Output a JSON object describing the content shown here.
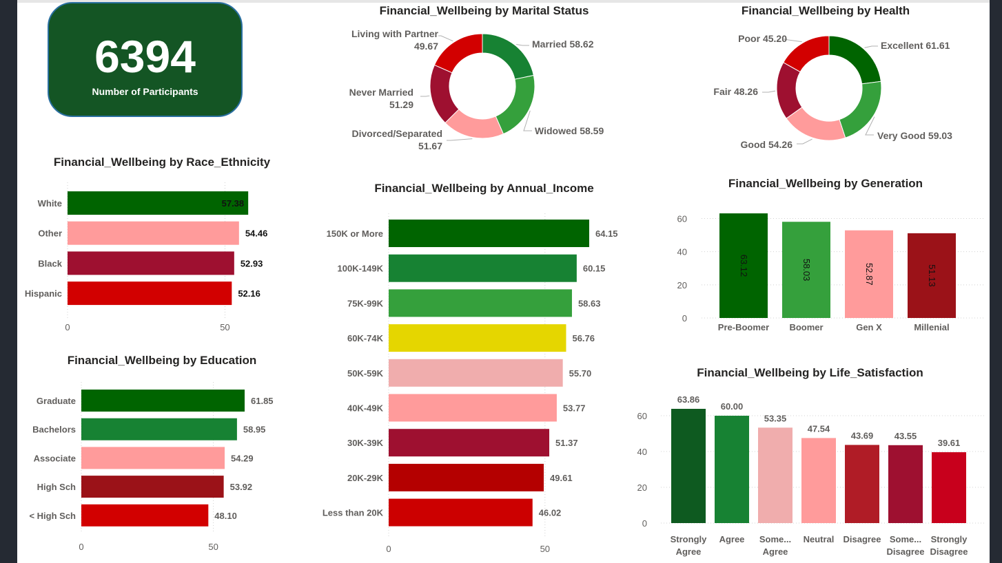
{
  "kpi": {
    "value": "6394",
    "label": "Number of Participants"
  },
  "charts": {
    "marital": {
      "title": "Financial_Wellbeing by Marital Status"
    },
    "health": {
      "title": "Financial_Wellbeing by Health"
    },
    "race": {
      "title": "Financial_Wellbeing by Race_Ethnicity"
    },
    "income": {
      "title": "Financial_Wellbeing by Annual_Income"
    },
    "generation": {
      "title": "Financial_Wellbeing by Generation"
    },
    "education": {
      "title": "Financial_Wellbeing by Education"
    },
    "life": {
      "title": "Financial_Wellbeing by Life_Satisfaction"
    }
  },
  "chart_data": [
    {
      "id": "marital",
      "type": "pie",
      "title": "Financial_Wellbeing by Marital Status",
      "categories": [
        "Married",
        "Widowed",
        "Divorced/Separated",
        "Never Married",
        "Living with Partner"
      ],
      "values": [
        58.62,
        58.59,
        51.67,
        51.29,
        49.67
      ],
      "labels": [
        "58.62",
        "58.59",
        "51.67",
        "51.29",
        "49.67"
      ],
      "colors": [
        "#178233",
        "#35a03c",
        "#ff9b9b",
        "#9e1030",
        "#d20000"
      ]
    },
    {
      "id": "health",
      "type": "pie",
      "title": "Financial_Wellbeing by Health",
      "categories": [
        "Excellent",
        "Very Good",
        "Good",
        "Fair",
        "Poor"
      ],
      "values": [
        61.61,
        59.03,
        54.26,
        48.26,
        45.2
      ],
      "labels": [
        "61.61",
        "59.03",
        "54.26",
        "48.26",
        "45.20"
      ],
      "colors": [
        "#006400",
        "#35a03c",
        "#ff9b9b",
        "#9e1030",
        "#d20000"
      ]
    },
    {
      "id": "race",
      "type": "bar",
      "orientation": "horizontal",
      "title": "Financial_Wellbeing by Race_Ethnicity",
      "categories": [
        "White",
        "Other",
        "Black",
        "Hispanic"
      ],
      "values": [
        57.38,
        54.46,
        52.93,
        52.16
      ],
      "labels": [
        "57.38",
        "54.46",
        "52.93",
        "52.16"
      ],
      "colors": [
        "#006400",
        "#ff9b9b",
        "#9e1030",
        "#d20000"
      ],
      "xticks": [
        0,
        50
      ],
      "xlim": [
        0,
        58
      ]
    },
    {
      "id": "income",
      "type": "bar",
      "orientation": "horizontal",
      "title": "Financial_Wellbeing by Annual_Income",
      "categories": [
        "150K or More",
        "100K-149K",
        "75K-99K",
        "60K-74K",
        "50K-59K",
        "40K-49K",
        "30K-39K",
        "20K-29K",
        "Less than 20K"
      ],
      "values": [
        64.15,
        60.15,
        58.63,
        56.76,
        55.7,
        53.77,
        51.37,
        49.61,
        46.02
      ],
      "labels": [
        "64.15",
        "60.15",
        "58.63",
        "56.76",
        "55.70",
        "53.77",
        "51.37",
        "49.61",
        "46.02"
      ],
      "colors": [
        "#006400",
        "#178233",
        "#35a03c",
        "#e5d600",
        "#f0adad",
        "#ff9b9b",
        "#9e1030",
        "#b40000",
        "#cc0000"
      ],
      "xticks": [
        0,
        50
      ],
      "xlim": [
        0,
        64.15
      ]
    },
    {
      "id": "generation",
      "type": "bar",
      "orientation": "vertical",
      "title": "Financial_Wellbeing by Generation",
      "categories": [
        "Pre-Boomer",
        "Boomer",
        "Gen X",
        "Millenial"
      ],
      "values": [
        63.12,
        58.03,
        52.87,
        51.13
      ],
      "labels": [
        "63.12",
        "58.03",
        "52.87",
        "51.13"
      ],
      "colors": [
        "#006400",
        "#35a03c",
        "#ff9b9b",
        "#9b1218"
      ],
      "yticks": [
        0,
        20,
        40,
        60
      ],
      "ylim": [
        0,
        63.12
      ]
    },
    {
      "id": "education",
      "type": "bar",
      "orientation": "horizontal",
      "title": "Financial_Wellbeing by Education",
      "categories": [
        "Graduate",
        "Bachelors",
        "Associate",
        "High Sch",
        "< High Sch"
      ],
      "values": [
        61.85,
        58.95,
        54.29,
        53.92,
        48.1
      ],
      "labels": [
        "61.85",
        "58.95",
        "54.29",
        "53.92",
        "48.10"
      ],
      "colors": [
        "#006400",
        "#178233",
        "#ff9b9b",
        "#9b1218",
        "#d20000"
      ],
      "xticks": [
        0,
        50
      ],
      "xlim": [
        0,
        61.85
      ]
    },
    {
      "id": "life",
      "type": "bar",
      "orientation": "vertical",
      "title": "Financial_Wellbeing by Life_Satisfaction",
      "categories": [
        [
          "Strongly",
          "Agree"
        ],
        [
          "Agree"
        ],
        [
          "Some...",
          "Agree"
        ],
        [
          "Neutral"
        ],
        [
          "Disagree"
        ],
        [
          "Some...",
          "Disagree"
        ],
        [
          "Strongly",
          "Disagree"
        ]
      ],
      "values": [
        63.86,
        60.0,
        53.35,
        47.54,
        43.69,
        43.55,
        39.61
      ],
      "labels": [
        "63.86",
        "60.00",
        "53.35",
        "47.54",
        "43.69",
        "43.55",
        "39.61"
      ],
      "colors": [
        "#0e5a20",
        "#178233",
        "#f0adad",
        "#ff9b9b",
        "#b01c26",
        "#9e1030",
        "#c8001c"
      ],
      "yticks": [
        0,
        20,
        40,
        60
      ],
      "ylim": [
        0,
        63.86
      ]
    }
  ]
}
